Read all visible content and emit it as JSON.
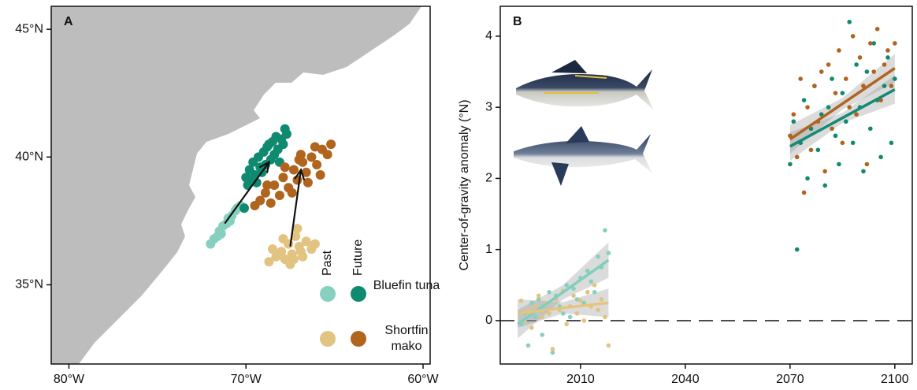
{
  "chart_data": [
    {
      "type": "scatter",
      "label": "A",
      "xlim": [
        -81,
        -59.6
      ],
      "ylim": [
        31.9,
        45.9
      ],
      "xticks": [
        {
          "value": -80,
          "label": "80°W"
        },
        {
          "value": -70,
          "label": "70°W"
        },
        {
          "value": -60,
          "label": "60°W"
        }
      ],
      "yticks": [
        {
          "value": 35,
          "label": "35°N"
        },
        {
          "value": 40,
          "label": "40°N"
        },
        {
          "value": 45,
          "label": "45°N"
        }
      ],
      "legend": {
        "columns": [
          "Past",
          "Future"
        ],
        "rows": [
          "Bluefin tuna",
          "Shortfin mako"
        ]
      },
      "series": [
        {
          "color": "#86d0c0",
          "x": [
            -72.0,
            -71.8,
            -71.6,
            -71.5,
            -71.3,
            -71.1,
            -71.0,
            -70.8,
            -70.6,
            -70.5,
            -70.3,
            -71.4,
            -70.9
          ],
          "y": [
            36.6,
            36.8,
            36.9,
            37.1,
            37.3,
            37.4,
            37.6,
            37.7,
            37.9,
            38.0,
            38.1,
            37.0,
            37.5
          ]
        },
        {
          "color": "#0f8a71",
          "x": [
            -70.0,
            -69.8,
            -69.9,
            -69.6,
            -69.5,
            -69.3,
            -69.2,
            -69.0,
            -68.9,
            -68.8,
            -68.6,
            -68.5,
            -68.4,
            -68.3,
            -68.2,
            -68.0,
            -67.9,
            -67.8,
            -69.4,
            -69.1,
            -68.7,
            -68.1,
            -69.7,
            -67.7,
            -70.1
          ],
          "y": [
            39.2,
            39.5,
            38.9,
            39.8,
            39.3,
            40.0,
            39.6,
            40.2,
            39.7,
            40.4,
            39.9,
            40.6,
            40.1,
            40.8,
            40.3,
            40.7,
            40.5,
            41.1,
            39.0,
            39.4,
            40.5,
            39.8,
            39.1,
            40.9,
            38.0
          ]
        },
        {
          "color": "#e2c37f",
          "x": [
            -68.7,
            -68.3,
            -68.0,
            -67.8,
            -67.6,
            -67.4,
            -67.2,
            -67.0,
            -66.8,
            -66.6,
            -66.3,
            -67.9,
            -67.5,
            -67.1,
            -66.9,
            -66.1,
            -68.5,
            -67.3
          ],
          "y": [
            35.9,
            36.1,
            36.3,
            36.0,
            36.6,
            36.2,
            36.9,
            36.5,
            36.1,
            36.7,
            36.4,
            36.8,
            35.8,
            37.2,
            36.3,
            36.6,
            36.4,
            36.0
          ]
        },
        {
          "color": "#b0641d",
          "x": [
            -69.5,
            -69.2,
            -68.9,
            -68.6,
            -68.4,
            -68.1,
            -67.9,
            -67.6,
            -67.3,
            -67.1,
            -66.8,
            -66.6,
            -66.3,
            -66.0,
            -65.7,
            -65.4,
            -65.2,
            -68.8,
            -67.8,
            -67.4,
            -66.9,
            -66.5,
            -66.1,
            -65.8,
            -67.0
          ],
          "y": [
            38.1,
            38.3,
            38.6,
            38.2,
            38.9,
            38.5,
            39.2,
            38.8,
            39.5,
            39.1,
            39.8,
            39.4,
            40.0,
            39.7,
            40.3,
            40.1,
            40.5,
            38.9,
            39.6,
            38.6,
            40.1,
            39.0,
            40.4,
            39.3,
            39.9
          ]
        }
      ],
      "arrows": [
        {
          "from": [
            -71.2,
            37.4
          ],
          "to": [
            -68.7,
            39.8
          ]
        },
        {
          "from": [
            -67.5,
            36.5
          ],
          "to": [
            -66.9,
            39.5
          ]
        }
      ]
    },
    {
      "type": "scatter",
      "label": "B",
      "y_label": "Center-of-gravity anomaly (°N)",
      "xlim": [
        1987,
        2105
      ],
      "ylim": [
        -0.61,
        4.42
      ],
      "xticks": [
        2010,
        2040,
        2070,
        2100
      ],
      "yticks": [
        0,
        1,
        2,
        3,
        4
      ],
      "hline": 0,
      "series": [
        {
          "color": "#86d0c0",
          "x": [
            1993,
            1994,
            1995,
            1996,
            1997,
            1998,
            1999,
            2000,
            2001,
            2002,
            2003,
            2004,
            2005,
            2006,
            2007,
            2008,
            2009,
            2010,
            2011,
            2012,
            2013,
            2014,
            2015,
            2016,
            2017,
            2018
          ],
          "values": [
            -0.05,
            0.1,
            -0.35,
            0.25,
            0.05,
            0.3,
            -0.2,
            0.15,
            0.4,
            -0.45,
            0.35,
            0.2,
            0.1,
            0.5,
            0.05,
            0.45,
            0.3,
            0.6,
            0.25,
            0.7,
            0.55,
            0.4,
            0.9,
            0.75,
            1.27,
            0.95
          ]
        },
        {
          "color": "#e2c37f",
          "x": [
            1993,
            1994,
            1995,
            1996,
            1997,
            1998,
            1999,
            2000,
            2001,
            2002,
            2003,
            2004,
            2005,
            2006,
            2007,
            2008,
            2009,
            2010,
            2011,
            2012,
            2013,
            2014,
            2015,
            2016,
            2017,
            2018
          ],
          "values": [
            0.28,
            0.0,
            0.15,
            -0.1,
            0.2,
            0.35,
            0.05,
            0.25,
            0.1,
            -0.4,
            0.3,
            0.15,
            0.42,
            -0.05,
            0.2,
            0.35,
            0.1,
            0.28,
            0.0,
            0.4,
            0.2,
            0.5,
            0.15,
            0.3,
            0.05,
            -0.35
          ]
        },
        {
          "color": "#0f8a71",
          "x": [
            2070,
            2071,
            2072,
            2073,
            2074,
            2075,
            2076,
            2077,
            2078,
            2079,
            2080,
            2081,
            2082,
            2083,
            2084,
            2085,
            2086,
            2087,
            2088,
            2089,
            2090,
            2091,
            2092,
            2093,
            2094,
            2095,
            2096,
            2097,
            2098,
            2099,
            2100
          ],
          "values": [
            2.2,
            2.8,
            1.0,
            2.5,
            3.1,
            2.0,
            2.7,
            3.3,
            2.4,
            2.9,
            1.9,
            3.0,
            3.4,
            2.6,
            2.2,
            3.2,
            2.8,
            4.2,
            2.5,
            3.6,
            3.0,
            2.1,
            3.5,
            2.7,
            3.9,
            3.1,
            2.3,
            3.3,
            3.7,
            2.5,
            3.4
          ]
        },
        {
          "color": "#b0641d",
          "x": [
            2070,
            2071,
            2072,
            2073,
            2074,
            2075,
            2076,
            2077,
            2078,
            2079,
            2080,
            2081,
            2082,
            2083,
            2084,
            2085,
            2086,
            2087,
            2088,
            2089,
            2090,
            2091,
            2092,
            2093,
            2094,
            2095,
            2096,
            2097,
            2098,
            2099,
            2100
          ],
          "values": [
            2.6,
            2.9,
            2.3,
            3.4,
            1.8,
            3.0,
            2.4,
            3.3,
            2.8,
            3.5,
            2.1,
            3.6,
            2.7,
            3.2,
            3.8,
            2.5,
            3.4,
            3.0,
            4.0,
            2.9,
            3.7,
            3.3,
            2.2,
            3.9,
            3.5,
            4.1,
            3.1,
            3.6,
            3.8,
            3.3,
            3.9
          ]
        }
      ],
      "trends": [
        {
          "color": "#7ecfbd",
          "x": [
            1992,
            2005,
            2018
          ],
          "y": [
            -0.05,
            0.4,
            0.85
          ],
          "lower": [
            -0.25,
            0.3,
            0.6
          ],
          "upper": [
            0.15,
            0.5,
            1.1
          ]
        },
        {
          "color": "#e6c47f",
          "x": [
            1992,
            2005,
            2018
          ],
          "y": [
            0.1,
            0.18,
            0.25
          ],
          "lower": [
            -0.1,
            0.1,
            0.05
          ],
          "upper": [
            0.3,
            0.26,
            0.45
          ]
        },
        {
          "color": "#138a73",
          "x": [
            2070,
            2085,
            2100
          ],
          "y": [
            2.45,
            2.85,
            3.25
          ],
          "lower": [
            2.25,
            2.78,
            3.05
          ],
          "upper": [
            2.65,
            2.92,
            3.45
          ]
        },
        {
          "color": "#b0641e",
          "x": [
            2070,
            2085,
            2100
          ],
          "y": [
            2.55,
            3.05,
            3.55
          ],
          "lower": [
            2.35,
            2.97,
            3.35
          ],
          "upper": [
            2.75,
            3.13,
            3.75
          ]
        }
      ]
    }
  ]
}
